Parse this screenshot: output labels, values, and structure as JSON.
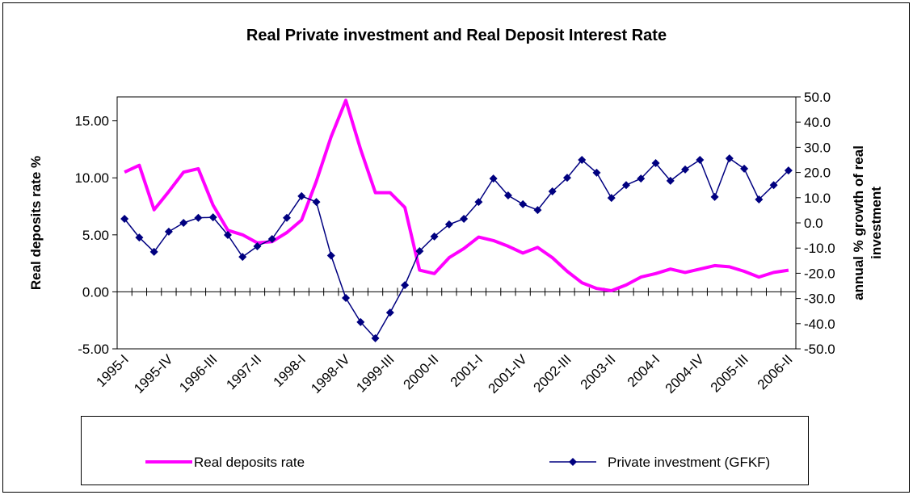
{
  "chart_data": {
    "type": "line",
    "title": "Real Private investment and Real Deposit Interest Rate",
    "ylabel": "Real deposits rate %",
    "y2label": [
      "annual % growth of real",
      "investment"
    ],
    "categories": [
      "1995-I",
      null,
      null,
      "1995-IV",
      null,
      null,
      "1996-III",
      null,
      null,
      "1997-II",
      null,
      null,
      "1998-I",
      null,
      null,
      "1998-IV",
      null,
      null,
      "1999-III",
      null,
      null,
      "2000-II",
      null,
      null,
      "2001-I",
      null,
      null,
      "2001-IV",
      null,
      null,
      "2002-III",
      null,
      null,
      "2003-II",
      null,
      null,
      "2004-I",
      null,
      null,
      "2004-IV",
      null,
      null,
      "2005-III",
      null,
      null,
      "2006-II"
    ],
    "ylim": [
      -5,
      17.1
    ],
    "yticks": [
      {
        "value": -5,
        "label": "-5.00"
      },
      {
        "value": 0,
        "label": "0.00"
      },
      {
        "value": 5,
        "label": "5.00"
      },
      {
        "value": 10,
        "label": "10.00"
      },
      {
        "value": 15,
        "label": "15.00"
      }
    ],
    "y2lim": [
      -50,
      50
    ],
    "y2ticks": [
      {
        "value": -50,
        "label": "-50.0"
      },
      {
        "value": -40,
        "label": "-40.0"
      },
      {
        "value": -30,
        "label": "-30.0"
      },
      {
        "value": -20,
        "label": "-20.0"
      },
      {
        "value": -10,
        "label": "-10.0"
      },
      {
        "value": 0,
        "label": "0.0"
      },
      {
        "value": 10,
        "label": "10.0"
      },
      {
        "value": 20,
        "label": "20.0"
      },
      {
        "value": 30,
        "label": "30.0"
      },
      {
        "value": 40,
        "label": "40.0"
      },
      {
        "value": 50,
        "label": "50.0"
      }
    ],
    "series": [
      {
        "name": "Real deposits rate",
        "color": "#ff00ff",
        "marker": false,
        "values": [
          10.5,
          11.1,
          7.2,
          8.8,
          10.5,
          10.8,
          7.6,
          5.4,
          5.0,
          4.3,
          4.4,
          5.2,
          6.3,
          9.7,
          13.6,
          16.8,
          12.5,
          8.7,
          8.7,
          7.4,
          1.9,
          1.6,
          3.0,
          3.8,
          4.8,
          4.5,
          4.0,
          3.4,
          3.9,
          3.0,
          1.8,
          0.8,
          0.3,
          0.1,
          0.6,
          1.3,
          1.6,
          2.0,
          1.7,
          2.0,
          2.3,
          2.2,
          1.8,
          1.3,
          1.7,
          1.9
        ]
      },
      {
        "name": "Private investment (GFKF)",
        "color": "#000080",
        "marker": true,
        "axis": "y2",
        "values": [
          1.6,
          -5.8,
          -11.5,
          -3.5,
          0,
          2,
          2.2,
          -4.8,
          -13.5,
          -9.3,
          -6.4,
          2,
          10.6,
          8.3,
          -13,
          -29.8,
          -39.4,
          -45.8,
          -35.6,
          -24.7,
          -11.2,
          -5.4,
          -0.6,
          1.6,
          8.3,
          17.6,
          10.9,
          7.4,
          5.1,
          12.5,
          17.9,
          25,
          19.9,
          9.9,
          15,
          17.6,
          23.7,
          16.7,
          21.2,
          25,
          10.3,
          25.6,
          21.5,
          9.3,
          15,
          20.8
        ]
      }
    ]
  }
}
